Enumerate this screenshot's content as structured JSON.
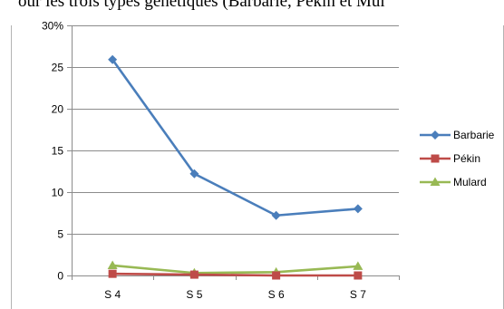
{
  "caption": "our les trois types génétiques (Barbarie, Pékin et Mul",
  "chart_data": {
    "type": "line",
    "categories": [
      "S 4",
      "S 5",
      "S 6",
      "S 7"
    ],
    "y_ticks": [
      "0",
      "5",
      "10",
      "15",
      "20",
      "25",
      "30%"
    ],
    "ylim": [
      0,
      30
    ],
    "ystep": 5,
    "grid": true,
    "legend_position": "right",
    "series": [
      {
        "name": "Barbarie",
        "values": [
          25.9,
          12.2,
          7.2,
          8.0
        ],
        "color": "#4a7ebb",
        "marker": "diamond"
      },
      {
        "name": "Pékin",
        "values": [
          0.2,
          0.1,
          0.0,
          0.0
        ],
        "color": "#be4b48",
        "marker": "square"
      },
      {
        "name": "Mulard",
        "values": [
          1.2,
          0.3,
          0.4,
          1.1
        ],
        "color": "#98b954",
        "marker": "triangle"
      }
    ]
  }
}
